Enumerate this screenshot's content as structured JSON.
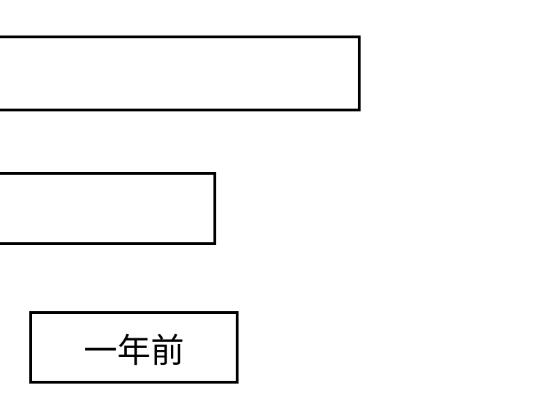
{
  "boxes": {
    "box1": {
      "border_color": "#000000",
      "background_color": "#ffffff"
    },
    "box2": {
      "border_color": "#000000",
      "background_color": "#ffffff"
    }
  },
  "button": {
    "label": "一年前",
    "border_color": "#000000",
    "background_color": "#ffffff",
    "font_size": 48,
    "text_color": "#000000"
  }
}
